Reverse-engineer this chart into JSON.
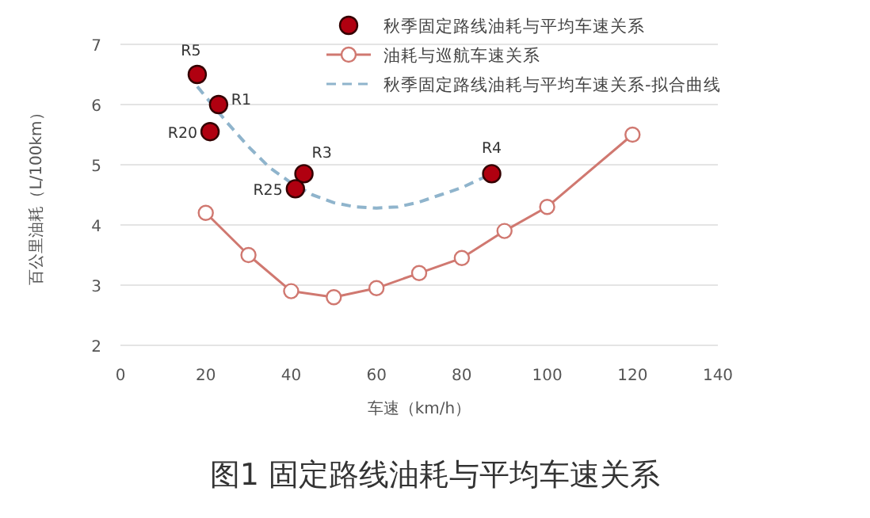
{
  "chart_data": {
    "type": "line",
    "title": "图1 固定路线油耗与平均车速关系",
    "xlabel": "车速（km/h）",
    "ylabel": "百公里油耗（L/100km）",
    "xlim": [
      0,
      140
    ],
    "xticks": [
      0,
      20,
      40,
      60,
      80,
      100,
      120,
      140
    ],
    "ylim": [
      2,
      7
    ],
    "yticks": [
      2,
      3,
      4,
      5,
      6,
      7
    ],
    "grid": "y",
    "legend": "top right",
    "series": [
      {
        "name": "秋季固定路线油耗与平均车速关系",
        "type": "scatter",
        "marker": "circle",
        "color": "#b00010",
        "x": [
          18,
          23,
          21,
          43,
          41,
          87
        ],
        "values": [
          6.5,
          6.0,
          5.55,
          4.85,
          4.6,
          4.85
        ]
      },
      {
        "name": "油耗与巡航车速关系",
        "marker": "circle",
        "line_style": "solid",
        "color": "#d07870",
        "x": [
          20,
          30,
          40,
          50,
          60,
          70,
          80,
          90,
          100,
          120
        ],
        "values": [
          4.2,
          3.5,
          2.9,
          2.8,
          2.95,
          3.2,
          3.45,
          3.9,
          4.3,
          5.5
        ]
      },
      {
        "name": "秋季固定路线油耗与平均车速关系-拟合曲线",
        "marker": "none",
        "line_style": "dashed",
        "color": "#8fb4cc",
        "x": [
          18,
          25,
          30,
          35,
          40,
          45,
          50,
          55,
          60,
          65,
          70,
          75,
          80,
          87
        ],
        "values": [
          6.3,
          5.7,
          5.3,
          4.95,
          4.7,
          4.5,
          4.37,
          4.3,
          4.28,
          4.3,
          4.38,
          4.5,
          4.62,
          4.85
        ]
      }
    ],
    "annotations": [
      {
        "text": "R5",
        "x": 18,
        "y": 6.5
      },
      {
        "text": "R1",
        "x": 23,
        "y": 6.0
      },
      {
        "text": "R20",
        "x": 21,
        "y": 5.55
      },
      {
        "text": "R3",
        "x": 43,
        "y": 4.85
      },
      {
        "text": "R25",
        "x": 41,
        "y": 4.6
      },
      {
        "text": "R4",
        "x": 87,
        "y": 4.85
      }
    ]
  }
}
